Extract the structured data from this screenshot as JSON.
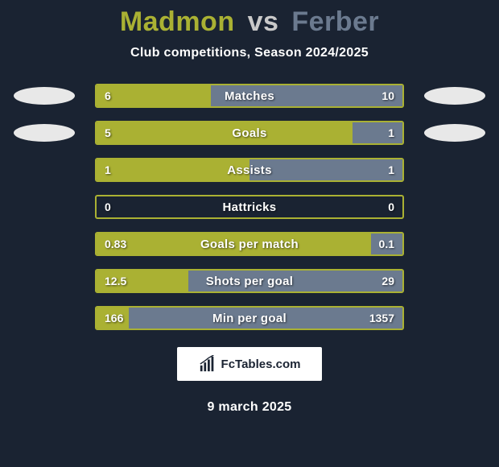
{
  "title": {
    "player1": "Madmon",
    "vs": "vs",
    "player2": "Ferber",
    "player1_color": "#aab133",
    "vs_color": "#c9c9c9",
    "player2_color": "#6b7a8f",
    "fontsize": 34
  },
  "subtitle": "Club competitions, Season 2024/2025",
  "subtitle_fontsize": 16,
  "background_color": "#1a2332",
  "bar_border_color": "#aab133",
  "left_fill_color": "#aab133",
  "right_fill_color": "#6b7a8f",
  "badge_color": "#e8e8e8",
  "text_color": "#ffffff",
  "stats": [
    {
      "label": "Matches",
      "left_val": "6",
      "right_val": "10",
      "left_pct": 37.5,
      "right_pct": 62.5,
      "show_badges": true
    },
    {
      "label": "Goals",
      "left_val": "5",
      "right_val": "1",
      "left_pct": 83.3,
      "right_pct": 16.7,
      "show_badges": true
    },
    {
      "label": "Assists",
      "left_val": "1",
      "right_val": "1",
      "left_pct": 50.0,
      "right_pct": 50.0,
      "show_badges": false
    },
    {
      "label": "Hattricks",
      "left_val": "0",
      "right_val": "0",
      "left_pct": 0.0,
      "right_pct": 0.0,
      "show_badges": false
    },
    {
      "label": "Goals per match",
      "left_val": "0.83",
      "right_val": "0.1",
      "left_pct": 89.2,
      "right_pct": 10.8,
      "show_badges": false
    },
    {
      "label": "Shots per goal",
      "left_val": "12.5",
      "right_val": "29",
      "left_pct": 30.1,
      "right_pct": 69.9,
      "show_badges": false
    },
    {
      "label": "Min per goal",
      "left_val": "166",
      "right_val": "1357",
      "left_pct": 10.9,
      "right_pct": 89.1,
      "show_badges": false
    }
  ],
  "logo_text": "FcTables.com",
  "date": "9 march 2025",
  "date_fontsize": 16
}
